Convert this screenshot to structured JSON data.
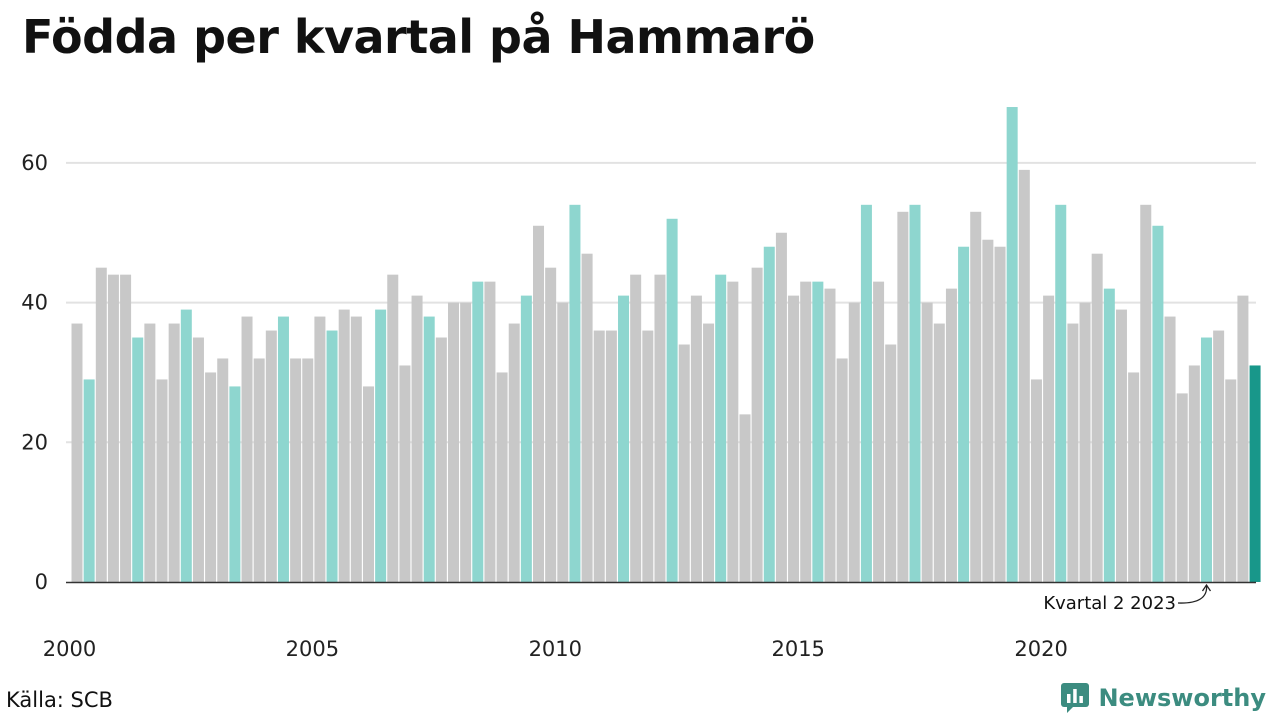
{
  "title": "Födda per kvartal på Hammarö",
  "source": "Källa: SCB",
  "brand": "Newsworthy",
  "colors": {
    "q2": "#8ed6cf",
    "other": "#c8c8c8",
    "latest": "#18978a",
    "grid": "#e2e2e2",
    "baseline": "#333333",
    "brand": "#3c8c80"
  },
  "chart_data": {
    "type": "bar",
    "title": "Födda per kvartal på Hammarö",
    "xlabel": "",
    "ylabel": "",
    "ylim": [
      0,
      68
    ],
    "y_ticks": [
      0,
      20,
      40,
      60
    ],
    "x_tick_years": [
      2000,
      2005,
      2010,
      2015,
      2020
    ],
    "grid": true,
    "start_year": 2000,
    "quarters_per_year": 4,
    "highlight_quarter": 2,
    "values": [
      37,
      29,
      45,
      44,
      44,
      35,
      37,
      29,
      37,
      39,
      35,
      30,
      32,
      28,
      38,
      32,
      36,
      38,
      32,
      32,
      38,
      36,
      39,
      38,
      28,
      39,
      44,
      31,
      41,
      38,
      35,
      40,
      40,
      43,
      43,
      30,
      37,
      41,
      51,
      45,
      40,
      54,
      47,
      36,
      36,
      41,
      44,
      36,
      44,
      52,
      34,
      41,
      37,
      44,
      43,
      24,
      45,
      48,
      50,
      41,
      43,
      43,
      42,
      32,
      40,
      54,
      43,
      34,
      53,
      54,
      40,
      37,
      42,
      48,
      53,
      49,
      48,
      68,
      59,
      29,
      41,
      54,
      37,
      40,
      47,
      42,
      39,
      30,
      54,
      51,
      38,
      27,
      31,
      35,
      36,
      29,
      41,
      31
    ],
    "annotation": {
      "text": "Kvartal 2 2023"
    }
  }
}
